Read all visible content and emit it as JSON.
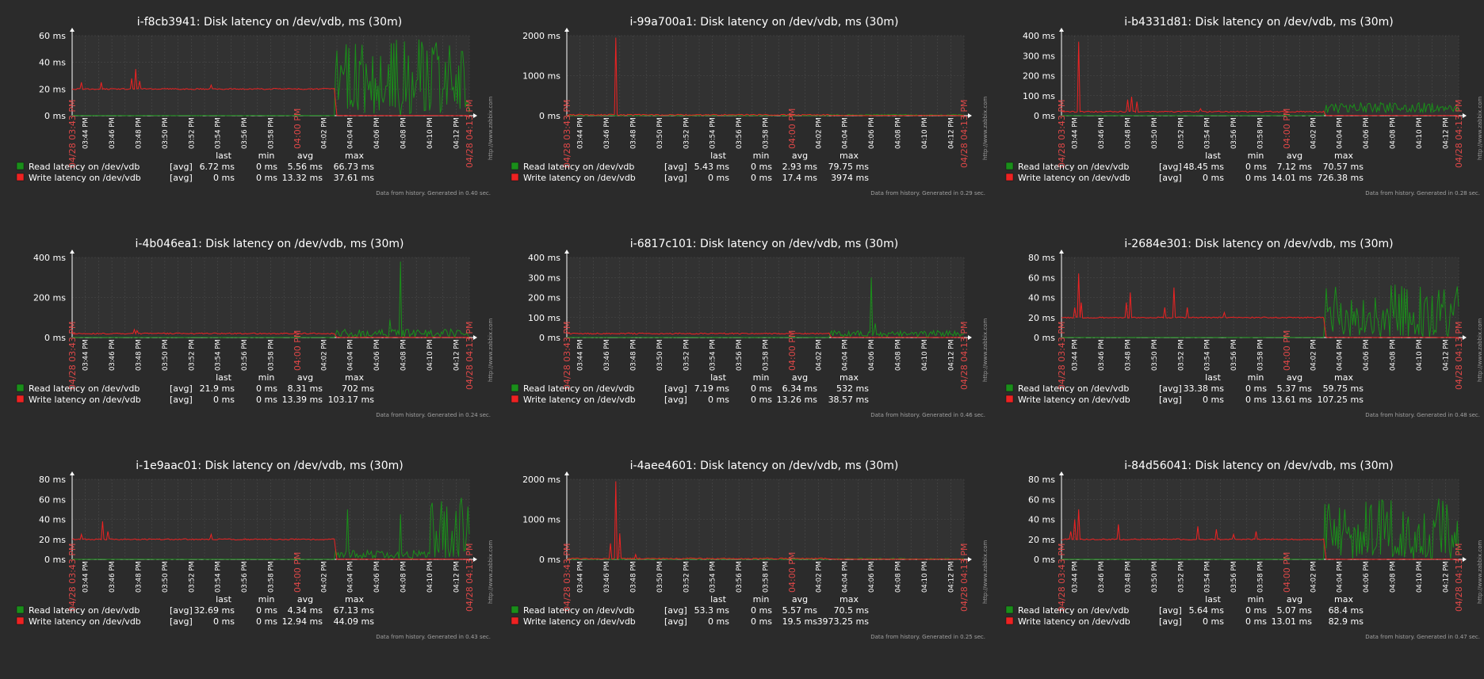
{
  "common": {
    "title_suffix": ": Disk latency on /dev/vdb, ms (30m)",
    "time_ticks": [
      "03:44 PM",
      "03:46 PM",
      "03:48 PM",
      "03:50 PM",
      "03:52 PM",
      "03:54 PM",
      "03:56 PM",
      "03:58 PM",
      "04:00 PM",
      "04:02 PM",
      "04:04 PM",
      "04:06 PM",
      "04:08 PM",
      "04:10 PM",
      "04:12 PM"
    ],
    "start_label": "04/28 03:43 PM",
    "end_label": "04/28 04:13 PM",
    "watermark": "http://www.zabbix.com",
    "legend_headers": [
      "last",
      "min",
      "avg",
      "max"
    ],
    "series_names": [
      "Read latency on /dev/vdb",
      "Write latency on /dev/vdb"
    ],
    "func_label": "[avg]",
    "footer_prefix": "Data from history. Generated in",
    "colors": {
      "read": "#1a8f1a",
      "write": "#ee2222",
      "background": "#2b2b2b",
      "plot": "#323232",
      "axis": "#ffffff",
      "accent_label": "#e04848"
    }
  },
  "chart_data": [
    {
      "type": "line",
      "title": "i-f8cb3941",
      "ylim": [
        0,
        60
      ],
      "yticks": [
        0,
        20,
        40,
        60
      ],
      "unit": "ms",
      "series": [
        {
          "name": "Read latency on /dev/vdb",
          "color": "#1a8f1a",
          "stats": {
            "last": "6.72 ms",
            "min": "0 ms",
            "avg": "5.56 ms",
            "max": "66.73 ms"
          }
        },
        {
          "name": "Write latency on /dev/vdb",
          "color": "#ee2222",
          "stats": {
            "last": "0 ms",
            "min": "0 ms",
            "avg": "13.32 ms",
            "max": "37.61 ms"
          }
        }
      ],
      "generated": "0.40 sec.",
      "switch_time": "04:02:50 PM",
      "write_base": 20,
      "read_level": "high",
      "read_max": 58,
      "spikes": [
        {
          "t": "03:43:40 PM",
          "v": 25
        },
        {
          "t": "03:45:10 PM",
          "v": 25
        },
        {
          "t": "03:47:30 PM",
          "v": 28
        },
        {
          "t": "03:47:50 PM",
          "v": 35
        },
        {
          "t": "03:48:05 PM",
          "v": 26
        },
        {
          "t": "03:53:30 PM",
          "v": 23
        }
      ],
      "read_spikes": []
    },
    {
      "type": "line",
      "title": "i-99a700a1",
      "ylim": [
        0,
        2000
      ],
      "yticks": [
        0,
        1000,
        2000
      ],
      "unit": "ms",
      "series": [
        {
          "name": "Read latency on /dev/vdb",
          "color": "#1a8f1a",
          "stats": {
            "last": "5.43 ms",
            "min": "0 ms",
            "avg": "2.93 ms",
            "max": "79.75 ms"
          }
        },
        {
          "name": "Write latency on /dev/vdb",
          "color": "#ee2222",
          "stats": {
            "last": "0 ms",
            "min": "0 ms",
            "avg": "17.4 ms",
            "max": "3974 ms"
          }
        }
      ],
      "generated": "0.29 sec.",
      "switch_time": "04:02:50 PM",
      "write_base": 20,
      "read_level": "tiny",
      "read_max": 80,
      "spikes": [
        {
          "t": "03:46:40 PM",
          "v": 1950
        }
      ],
      "read_spikes": []
    },
    {
      "type": "line",
      "title": "i-b4331d81",
      "ylim": [
        0,
        400
      ],
      "yticks": [
        0,
        100,
        200,
        300,
        400
      ],
      "unit": "ms",
      "series": [
        {
          "name": "Read latency on /dev/vdb",
          "color": "#1a8f1a",
          "stats": {
            "last": "48.45 ms",
            "min": "0 ms",
            "avg": "7.12 ms",
            "max": "70.57 ms"
          }
        },
        {
          "name": "Write latency on /dev/vdb",
          "color": "#ee2222",
          "stats": {
            "last": "0 ms",
            "min": "0 ms",
            "avg": "14.01 ms",
            "max": "726.38 ms"
          }
        }
      ],
      "generated": "0.28 sec.",
      "switch_time": "04:02:50 PM",
      "write_base": 20,
      "read_level": "band",
      "read_max": 60,
      "spikes": [
        {
          "t": "03:44:20 PM",
          "v": 370
        },
        {
          "t": "03:48:00 PM",
          "v": 80
        },
        {
          "t": "03:48:20 PM",
          "v": 95
        },
        {
          "t": "03:48:40 PM",
          "v": 70
        },
        {
          "t": "03:53:30 PM",
          "v": 35
        }
      ],
      "read_spikes": []
    },
    {
      "type": "line",
      "title": "i-4b046ea1",
      "ylim": [
        0,
        400
      ],
      "yticks": [
        0,
        200,
        400
      ],
      "unit": "ms",
      "series": [
        {
          "name": "Read latency on /dev/vdb",
          "color": "#1a8f1a",
          "stats": {
            "last": "21.9 ms",
            "min": "0 ms",
            "avg": "8.31 ms",
            "max": "702 ms"
          }
        },
        {
          "name": "Write latency on /dev/vdb",
          "color": "#ee2222",
          "stats": {
            "last": "0 ms",
            "min": "0 ms",
            "avg": "13.39 ms",
            "max": "103.17 ms"
          }
        }
      ],
      "generated": "0.24 sec.",
      "switch_time": "04:02:50 PM",
      "write_base": 20,
      "read_level": "low",
      "read_max": 70,
      "spikes": [
        {
          "t": "03:47:40 PM",
          "v": 40
        },
        {
          "t": "03:47:55 PM",
          "v": 35
        }
      ],
      "read_spikes": [
        {
          "t": "04:07:50 PM",
          "v": 380
        },
        {
          "t": "04:07:00 PM",
          "v": 90
        }
      ]
    },
    {
      "type": "line",
      "title": "i-6817c101",
      "ylim": [
        0,
        400
      ],
      "yticks": [
        0,
        100,
        200,
        300,
        400
      ],
      "unit": "ms",
      "series": [
        {
          "name": "Read latency on /dev/vdb",
          "color": "#1a8f1a",
          "stats": {
            "last": "7.19 ms",
            "min": "0 ms",
            "avg": "6.34 ms",
            "max": "532 ms"
          }
        },
        {
          "name": "Write latency on /dev/vdb",
          "color": "#ee2222",
          "stats": {
            "last": "0 ms",
            "min": "0 ms",
            "avg": "13.26 ms",
            "max": "38.57 ms"
          }
        }
      ],
      "generated": "0.46 sec.",
      "switch_time": "04:02:50 PM",
      "write_base": 20,
      "read_level": "low",
      "read_max": 60,
      "spikes": [],
      "read_spikes": [
        {
          "t": "04:06:00 PM",
          "v": 300
        },
        {
          "t": "04:06:20 PM",
          "v": 70
        }
      ]
    },
    {
      "type": "line",
      "title": "i-2684e301",
      "ylim": [
        0,
        80
      ],
      "yticks": [
        0,
        20,
        40,
        60,
        80
      ],
      "unit": "ms",
      "series": [
        {
          "name": "Read latency on /dev/vdb",
          "color": "#1a8f1a",
          "stats": {
            "last": "33.38 ms",
            "min": "0 ms",
            "avg": "5.37 ms",
            "max": "59.75 ms"
          }
        },
        {
          "name": "Write latency on /dev/vdb",
          "color": "#ee2222",
          "stats": {
            "last": "0 ms",
            "min": "0 ms",
            "avg": "13.61 ms",
            "max": "107.25 ms"
          }
        }
      ],
      "generated": "0.48 sec.",
      "switch_time": "04:02:50 PM",
      "write_base": 20,
      "read_level": "high",
      "read_max": 55,
      "spikes": [
        {
          "t": "03:44:00 PM",
          "v": 30
        },
        {
          "t": "03:44:15 PM",
          "v": 64
        },
        {
          "t": "03:44:30 PM",
          "v": 35
        },
        {
          "t": "03:47:55 PM",
          "v": 35
        },
        {
          "t": "03:48:10 PM",
          "v": 45
        },
        {
          "t": "03:50:50 PM",
          "v": 30
        },
        {
          "t": "03:51:30 PM",
          "v": 50
        },
        {
          "t": "03:52:30 PM",
          "v": 30
        },
        {
          "t": "03:55:20 PM",
          "v": 25
        }
      ],
      "read_spikes": []
    },
    {
      "type": "line",
      "title": "i-1e9aac01",
      "ylim": [
        0,
        80
      ],
      "yticks": [
        0,
        20,
        40,
        60,
        80
      ],
      "unit": "ms",
      "series": [
        {
          "name": "Read latency on /dev/vdb",
          "color": "#1a8f1a",
          "stats": {
            "last": "32.69 ms",
            "min": "0 ms",
            "avg": "4.34 ms",
            "max": "67.13 ms"
          }
        },
        {
          "name": "Write latency on /dev/vdb",
          "color": "#ee2222",
          "stats": {
            "last": "0 ms",
            "min": "0 ms",
            "avg": "12.94 ms",
            "max": "44.09 ms"
          }
        }
      ],
      "generated": "0.43 sec.",
      "switch_time": "04:02:50 PM",
      "write_base": 20,
      "read_level": "mixed",
      "read_max": 62,
      "spikes": [
        {
          "t": "03:43:40 PM",
          "v": 25
        },
        {
          "t": "03:45:20 PM",
          "v": 38
        },
        {
          "t": "03:45:40 PM",
          "v": 28
        },
        {
          "t": "03:53:30 PM",
          "v": 25
        }
      ],
      "read_spikes": [
        {
          "t": "04:03:50 PM",
          "v": 50
        },
        {
          "t": "04:07:50 PM",
          "v": 45
        }
      ]
    },
    {
      "type": "line",
      "title": "i-4aee4601",
      "ylim": [
        0,
        2000
      ],
      "yticks": [
        0,
        1000,
        2000
      ],
      "unit": "ms",
      "series": [
        {
          "name": "Read latency on /dev/vdb",
          "color": "#1a8f1a",
          "stats": {
            "last": "53.3 ms",
            "min": "0 ms",
            "avg": "5.57 ms",
            "max": "70.5 ms"
          }
        },
        {
          "name": "Write latency on /dev/vdb",
          "color": "#ee2222",
          "stats": {
            "last": "0 ms",
            "min": "0 ms",
            "avg": "19.5 ms",
            "max": "3973.25 ms"
          }
        }
      ],
      "generated": "0.25 sec.",
      "switch_time": "04:02:50 PM",
      "write_base": 20,
      "read_level": "tiny",
      "read_max": 70,
      "spikes": [
        {
          "t": "03:46:20 PM",
          "v": 400
        },
        {
          "t": "03:46:40 PM",
          "v": 1950
        },
        {
          "t": "03:47:00 PM",
          "v": 650
        },
        {
          "t": "03:48:10 PM",
          "v": 120
        }
      ],
      "read_spikes": []
    },
    {
      "type": "line",
      "title": "i-84d56041",
      "ylim": [
        0,
        80
      ],
      "yticks": [
        0,
        20,
        40,
        60,
        80
      ],
      "unit": "ms",
      "series": [
        {
          "name": "Read latency on /dev/vdb",
          "color": "#1a8f1a",
          "stats": {
            "last": "5.64 ms",
            "min": "0 ms",
            "avg": "5.07 ms",
            "max": "68.4 ms"
          }
        },
        {
          "name": "Write latency on /dev/vdb",
          "color": "#ee2222",
          "stats": {
            "last": "0 ms",
            "min": "0 ms",
            "avg": "13.01 ms",
            "max": "82.9 ms"
          }
        }
      ],
      "generated": "0.47 sec.",
      "switch_time": "04:02:50 PM",
      "write_base": 20,
      "read_level": "high",
      "read_max": 62,
      "spikes": [
        {
          "t": "03:43:40 PM",
          "v": 28
        },
        {
          "t": "03:44:00 PM",
          "v": 40
        },
        {
          "t": "03:44:20 PM",
          "v": 50
        },
        {
          "t": "03:47:20 PM",
          "v": 35
        },
        {
          "t": "03:53:20 PM",
          "v": 33
        },
        {
          "t": "03:54:40 PM",
          "v": 30
        },
        {
          "t": "03:56:00 PM",
          "v": 25
        },
        {
          "t": "03:57:40 PM",
          "v": 28
        }
      ],
      "read_spikes": []
    }
  ]
}
